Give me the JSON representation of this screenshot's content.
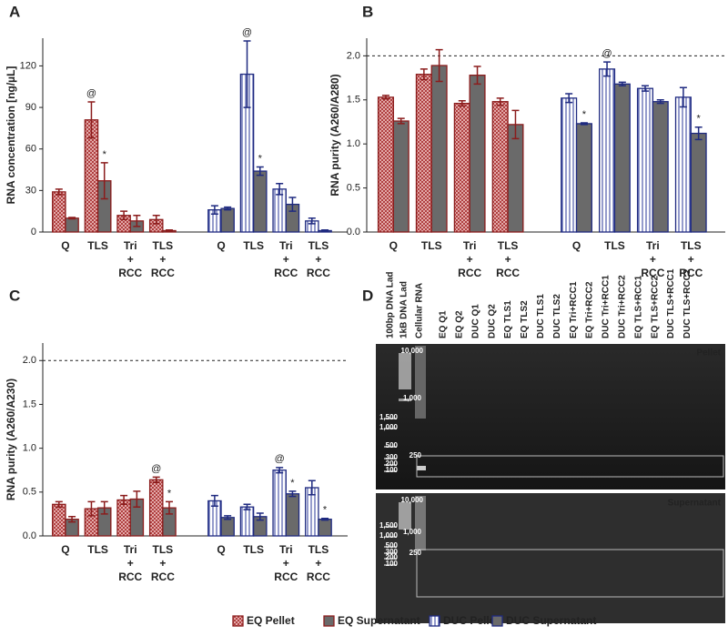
{
  "chart_data": [
    {
      "type": "bar",
      "panel_label": "A",
      "ylabel": "RNA concentration [ng/µL]",
      "categories": [
        "Q",
        "TLS",
        "Tri + RCC",
        "TLS + RCC"
      ],
      "ylim": [
        0,
        140
      ],
      "yticks": [
        0,
        30,
        60,
        90,
        120
      ],
      "series": [
        {
          "name": "EQ Pellet",
          "color": "#8b1c1c",
          "fill": "crosshatch",
          "values": [
            29,
            81,
            12,
            9
          ],
          "errors": [
            2,
            13,
            3,
            3
          ],
          "annotations": [
            null,
            "@",
            null,
            null
          ]
        },
        {
          "name": "EQ Supernatant",
          "color": "#8b1c1c",
          "fill": "#6a6a6a",
          "values": [
            10,
            37,
            8,
            1
          ],
          "errors": [
            0.5,
            13,
            4,
            0.5
          ],
          "annotations": [
            null,
            "*",
            null,
            null
          ]
        },
        {
          "name": "DUC Pellet",
          "color": "#1f2a80",
          "fill": "stripes",
          "values": [
            16,
            114,
            31,
            8
          ],
          "errors": [
            3,
            24,
            4,
            2
          ],
          "annotations": [
            null,
            "@",
            null,
            null
          ]
        },
        {
          "name": "DUC Supernatant",
          "color": "#1f2a80",
          "fill": "#6a6a6a",
          "values": [
            17,
            44,
            20,
            1
          ],
          "errors": [
            1,
            3,
            5,
            0.5
          ],
          "annotations": [
            null,
            "*",
            null,
            null
          ]
        }
      ]
    },
    {
      "type": "bar",
      "panel_label": "B",
      "ylabel": "RNA purity (A260/A280)",
      "categories": [
        "Q",
        "TLS",
        "Tri + RCC",
        "TLS + RCC"
      ],
      "ylim": [
        0,
        2.2
      ],
      "yticks": [
        {
          "value": 0,
          "label": "0.0"
        },
        0.5,
        {
          "value": 1,
          "label": "1.0"
        },
        1.5,
        {
          "value": 2,
          "label": "2.0"
        }
      ],
      "reference_line": 2,
      "series": [
        {
          "name": "EQ Pellet",
          "color": "#8b1c1c",
          "fill": "crosshatch",
          "values": [
            1.53,
            1.79,
            1.46,
            1.48
          ],
          "errors": [
            0.02,
            0.06,
            0.03,
            0.04
          ],
          "annotations": [
            null,
            null,
            null,
            null
          ]
        },
        {
          "name": "EQ Supernatant",
          "color": "#8b1c1c",
          "fill": "#6a6a6a",
          "values": [
            1.26,
            1.89,
            1.78,
            1.22
          ],
          "errors": [
            0.03,
            0.18,
            0.1,
            0.16
          ],
          "annotations": [
            null,
            null,
            null,
            null
          ]
        },
        {
          "name": "DUC Pellet",
          "color": "#1f2a80",
          "fill": "stripes",
          "values": [
            1.52,
            1.85,
            1.63,
            1.53
          ],
          "errors": [
            0.05,
            0.08,
            0.03,
            0.11
          ],
          "annotations": [
            null,
            "@",
            null,
            null
          ]
        },
        {
          "name": "DUC Supernatant",
          "color": "#1f2a80",
          "fill": "#6a6a6a",
          "values": [
            1.23,
            1.68,
            1.48,
            1.12
          ],
          "errors": [
            0.01,
            0.02,
            0.02,
            0.07
          ],
          "annotations": [
            "*",
            null,
            null,
            "*"
          ]
        }
      ]
    },
    {
      "type": "bar",
      "panel_label": "C",
      "ylabel": "RNA purity (A260/A230)",
      "categories": [
        "Q",
        "TLS",
        "Tri + RCC",
        "TLS + RCC"
      ],
      "ylim": [
        0,
        2.2
      ],
      "yticks": [
        {
          "value": 0,
          "label": "0.0"
        },
        0.5,
        {
          "value": 1,
          "label": "1.0"
        },
        1.5,
        {
          "value": 2,
          "label": "2.0"
        }
      ],
      "reference_line": 2,
      "series": [
        {
          "name": "EQ Pellet",
          "color": "#8b1c1c",
          "fill": "crosshatch",
          "values": [
            0.36,
            0.31,
            0.41,
            0.64
          ],
          "errors": [
            0.03,
            0.08,
            0.05,
            0.03
          ],
          "annotations": [
            null,
            null,
            null,
            "@"
          ]
        },
        {
          "name": "EQ Supernatant",
          "color": "#8b1c1c",
          "fill": "#6a6a6a",
          "values": [
            0.19,
            0.32,
            0.42,
            0.32
          ],
          "errors": [
            0.03,
            0.07,
            0.09,
            0.07
          ],
          "annotations": [
            null,
            null,
            null,
            "*"
          ]
        },
        {
          "name": "DUC Pellet",
          "color": "#1f2a80",
          "fill": "stripes",
          "values": [
            0.4,
            0.33,
            0.75,
            0.55
          ],
          "errors": [
            0.06,
            0.03,
            0.03,
            0.08
          ],
          "annotations": [
            null,
            null,
            "@",
            null
          ]
        },
        {
          "name": "DUC Supernatant",
          "color": "#1f2a80",
          "fill": "#6a6a6a",
          "values": [
            0.21,
            0.22,
            0.48,
            0.19
          ],
          "errors": [
            0.02,
            0.04,
            0.03,
            0.01
          ],
          "annotations": [
            null,
            null,
            "*",
            "*"
          ]
        }
      ]
    }
  ],
  "gel": {
    "panel_label": "D",
    "lanes": [
      {
        "label": "100bp DNA Lad",
        "color": "#111"
      },
      {
        "label": "1kB DNA Lad",
        "color": "#111"
      },
      {
        "label": "Cellular RNA",
        "color": "#111"
      },
      {
        "label": "EQ Q1",
        "color": "#8b1c1c"
      },
      {
        "label": "EQ Q2",
        "color": "#8b1c1c"
      },
      {
        "label": "DUC Q1",
        "color": "#2b5aa0"
      },
      {
        "label": "DUC Q2",
        "color": "#2b5aa0"
      },
      {
        "label": "EQ TLS1",
        "color": "#8b1c1c"
      },
      {
        "label": "EQ TLS2",
        "color": "#8b1c1c"
      },
      {
        "label": "DUC TLS1",
        "color": "#2b5aa0"
      },
      {
        "label": "DUC TLS2",
        "color": "#2b5aa0"
      },
      {
        "label": "EQ Tri+RCC1",
        "color": "#8b1c1c"
      },
      {
        "label": "EQ Tri+RCC2",
        "color": "#8b1c1c"
      },
      {
        "label": "DUC Tri+RCC1",
        "color": "#2b5aa0"
      },
      {
        "label": "DUC Tri+RCC2",
        "color": "#2b5aa0"
      },
      {
        "label": "EQ TLS+RCC1",
        "color": "#8b1c1c"
      },
      {
        "label": "EQ TLS+RCC2",
        "color": "#8b1c1c"
      },
      {
        "label": "DUC TLS+RCC1",
        "color": "#2b5aa0"
      },
      {
        "label": "DUC TLS+RCC2",
        "color": "#2b5aa0"
      }
    ],
    "sections": [
      {
        "label": "Pellet",
        "markers": [
          "10,000",
          "1,500",
          "1,000",
          "1,000",
          "500",
          "300",
          "250",
          "200",
          "100"
        ]
      },
      {
        "label": "Supernatant",
        "markers": [
          "10,000",
          "1,500",
          "1,000",
          "1,000",
          "500",
          "300",
          "250",
          "200",
          "100"
        ]
      }
    ]
  }
}
